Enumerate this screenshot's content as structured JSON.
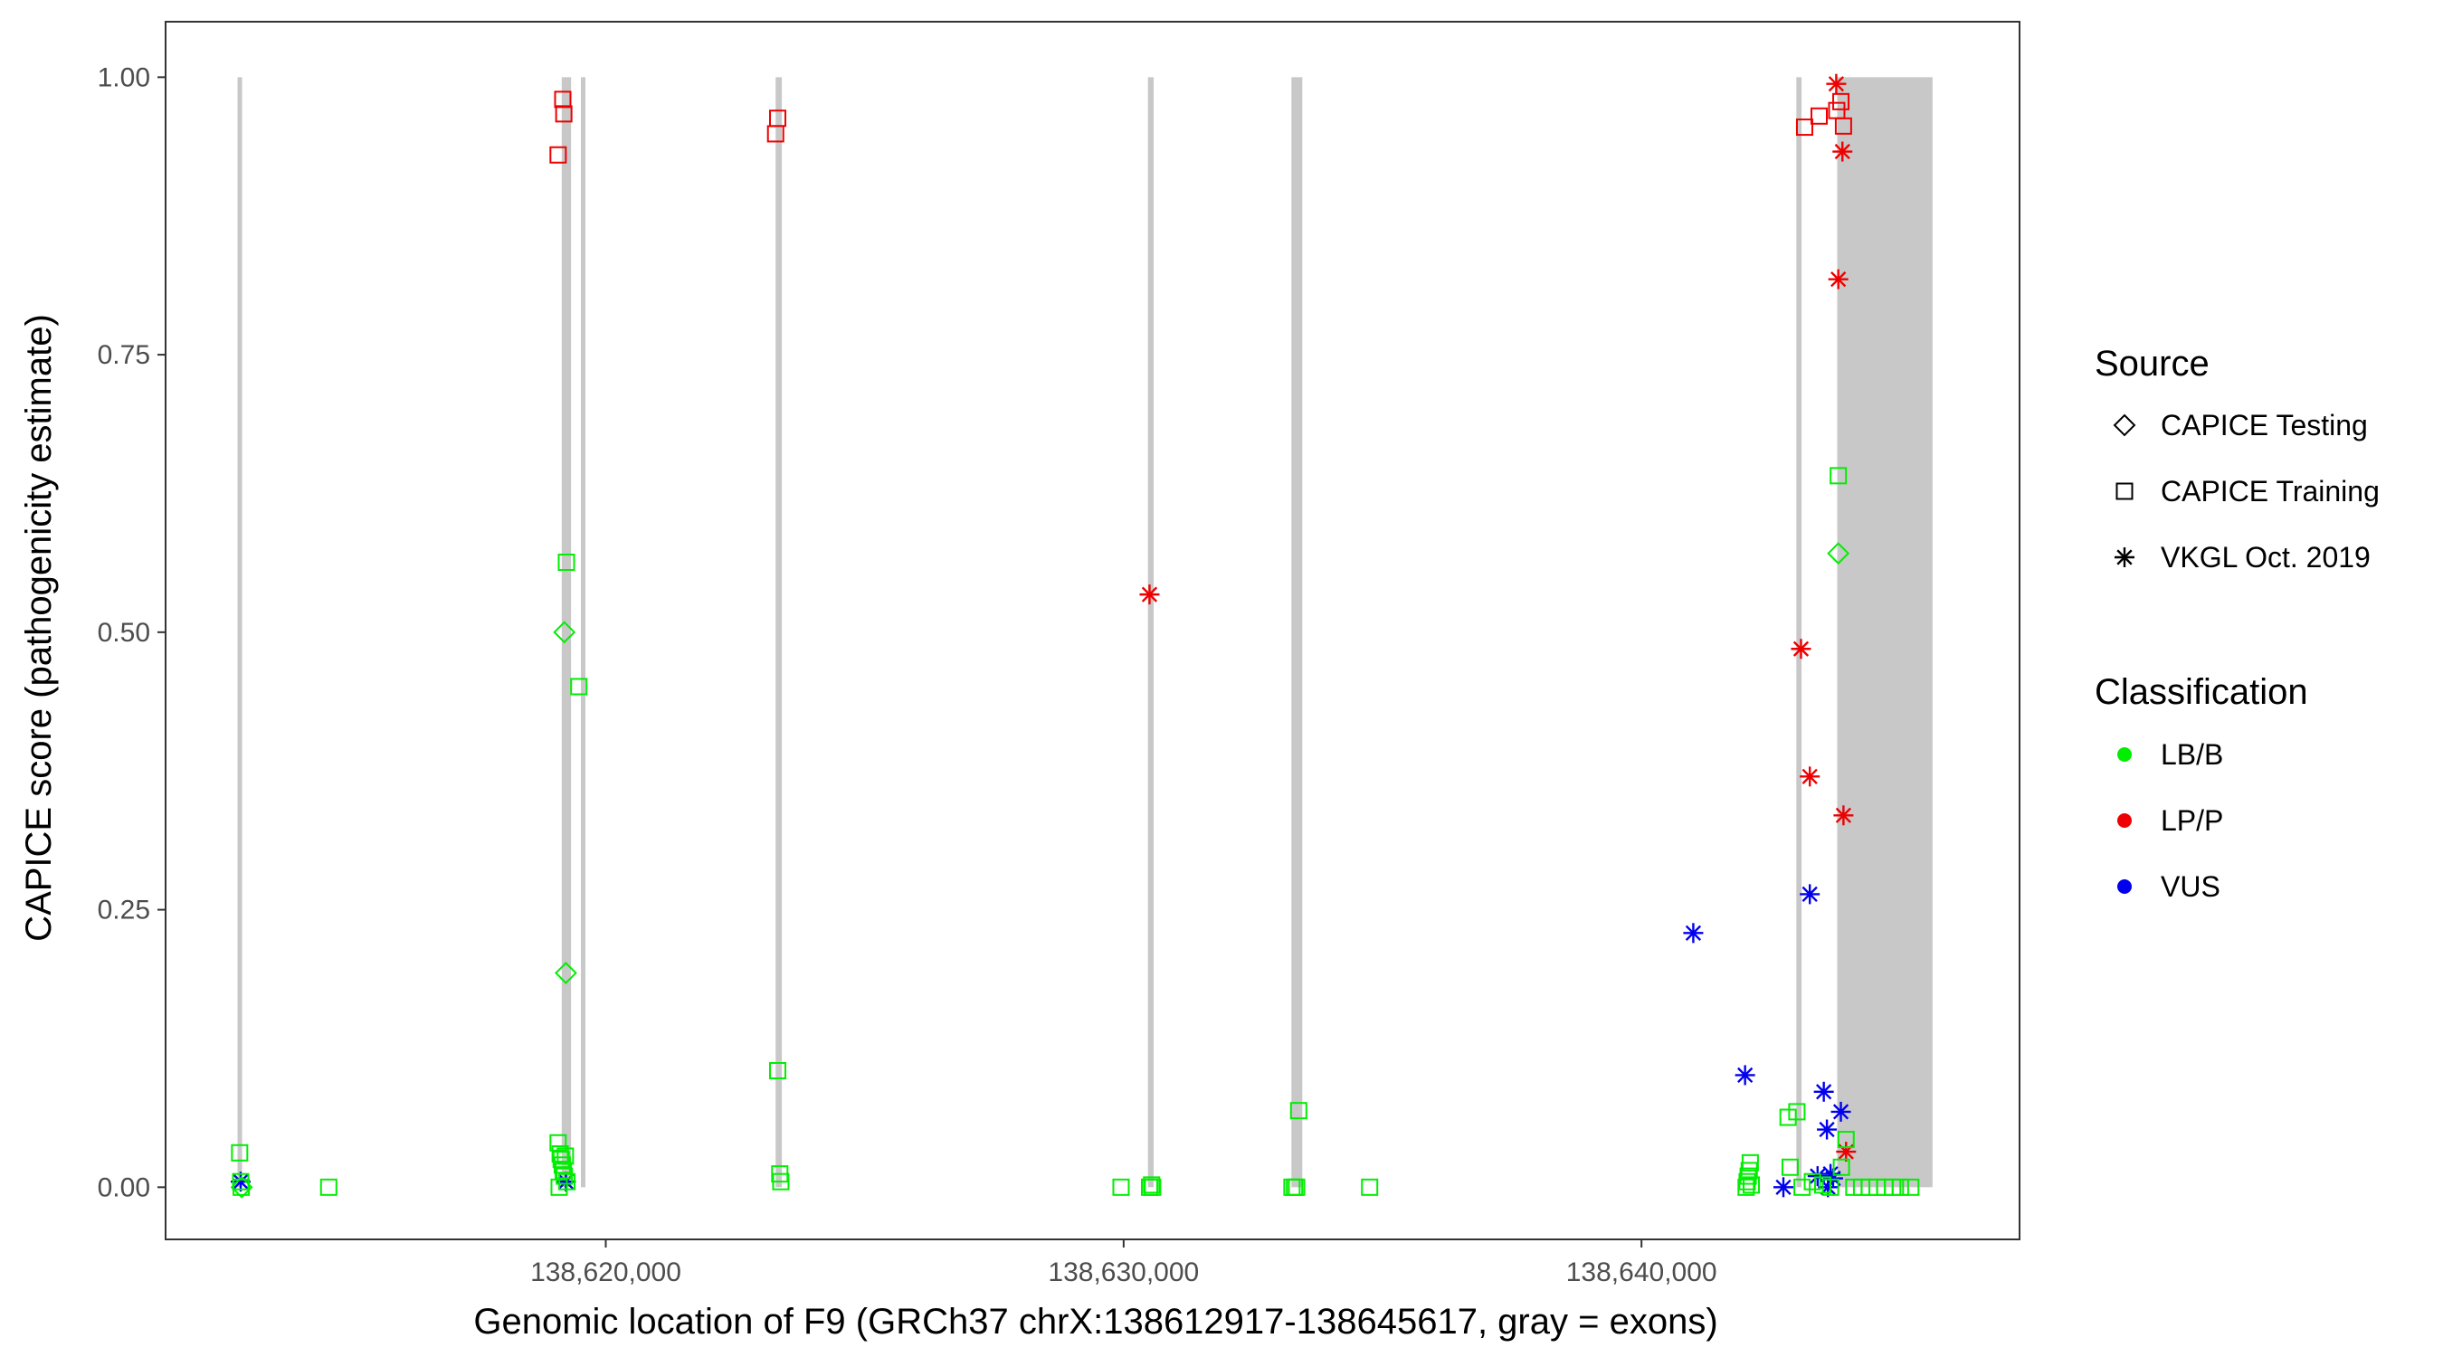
{
  "chart_data": {
    "type": "scatter",
    "title": "",
    "xlabel": "Genomic location of F9 (GRCh37 chrX:138612917-138645617, gray = exons)",
    "ylabel": "CAPICE score (pathogenicity estimate)",
    "xlim": [
      138611500,
      138647300
    ],
    "ylim": [
      -0.047,
      1.05
    ],
    "x_ticks": [
      138620000,
      138630000,
      138640000
    ],
    "x_tick_labels": [
      "138,620,000",
      "138,630,000",
      "138,640,000"
    ],
    "y_ticks": [
      0.0,
      0.25,
      0.5,
      0.75,
      1.0
    ],
    "y_tick_labels": [
      "0.00",
      "0.25",
      "0.50",
      "0.75",
      "1.00"
    ],
    "grid": false,
    "legend_position": "right",
    "exons": [
      {
        "start": 138612890,
        "end": 138612960
      },
      {
        "start": 138619150,
        "end": 138619330
      },
      {
        "start": 138619520,
        "end": 138619560
      },
      {
        "start": 138623280,
        "end": 138623400
      },
      {
        "start": 138630470,
        "end": 138630580
      },
      {
        "start": 138633240,
        "end": 138633450
      },
      {
        "start": 138642990,
        "end": 138643090
      },
      {
        "start": 138643780,
        "end": 138645620
      }
    ],
    "legend": {
      "source_title": "Source",
      "source_items": [
        {
          "label": "CAPICE Testing",
          "shape": "diamond"
        },
        {
          "label": "CAPICE Training",
          "shape": "square"
        },
        {
          "label": "VKGL Oct. 2019",
          "shape": "star"
        }
      ],
      "class_title": "Classification",
      "class_items": [
        {
          "label": "LB/B",
          "color": "#00ee00"
        },
        {
          "label": "LP/P",
          "color": "#ee0000"
        },
        {
          "label": "VUS",
          "color": "#0000ee"
        }
      ]
    },
    "series": [
      {
        "source": "CAPICE Training",
        "classification": "LP/P",
        "x": [
          138619080,
          138619170,
          138619190,
          138623280,
          138623320,
          138643150,
          138643430,
          138643770,
          138643850,
          138643900
        ],
        "y": [
          0.93,
          0.98,
          0.967,
          0.949,
          0.963,
          0.955,
          0.965,
          0.97,
          0.978,
          0.956
        ]
      },
      {
        "source": "VKGL Oct. 2019",
        "classification": "LP/P",
        "x": [
          138630500,
          138643080,
          138643250,
          138643760,
          138643800,
          138643880,
          138643900,
          138643950
        ],
        "y": [
          0.534,
          0.485,
          0.37,
          0.994,
          0.818,
          0.933,
          0.335,
          0.032
        ]
      },
      {
        "source": "VKGL Oct. 2019",
        "classification": "VUS",
        "x": [
          138612950,
          138619230,
          138641000,
          138642000,
          138642740,
          138643250,
          138643400,
          138643520,
          138643580,
          138643650,
          138643700,
          138643850,
          138643600
        ],
        "y": [
          0.005,
          0.005,
          0.229,
          0.101,
          0.0,
          0.264,
          0.01,
          0.086,
          0.052,
          0.012,
          0.008,
          0.068,
          0.0
        ]
      },
      {
        "source": "CAPICE Training",
        "classification": "LB/B",
        "x": [
          138612930,
          138612950,
          138612960,
          138614650,
          138619080,
          138619100,
          138619120,
          138619140,
          138619160,
          138619180,
          138619200,
          138619220,
          138619240,
          138619250,
          138619480,
          138623320,
          138623360,
          138623380,
          138629950,
          138630500,
          138630540,
          138630560,
          138633250,
          138633300,
          138633340,
          138633380,
          138634750,
          138642020,
          138642040,
          138642060,
          138642080,
          138642100,
          138642120,
          138642830,
          138642870,
          138643000,
          138643100,
          138643300,
          138643500,
          138643650,
          138643800,
          138643860,
          138643950,
          138644100,
          138644250,
          138644400,
          138644550,
          138644700,
          138644850,
          138645000,
          138645200
        ],
        "y": [
          0.031,
          0.005,
          0.0,
          0.0,
          0.04,
          0.0,
          0.03,
          0.025,
          0.02,
          0.015,
          0.01,
          0.028,
          0.563,
          0.005,
          0.451,
          0.105,
          0.012,
          0.005,
          0.0,
          0.0,
          0.002,
          0.0,
          0.0,
          0.0,
          0.0,
          0.069,
          0.0,
          0.0,
          0.005,
          0.01,
          0.015,
          0.022,
          0.002,
          0.063,
          0.018,
          0.068,
          0.0,
          0.005,
          0.002,
          0.0,
          0.641,
          0.018,
          0.043,
          0.0,
          0.0,
          0.0,
          0.0,
          0.0,
          0.0,
          0.0,
          0.0
        ]
      },
      {
        "source": "CAPICE Testing",
        "classification": "LB/B",
        "x": [
          138612970,
          138619200,
          138619230,
          138643800
        ],
        "y": [
          0.0,
          0.5,
          0.193,
          0.571
        ]
      }
    ]
  }
}
